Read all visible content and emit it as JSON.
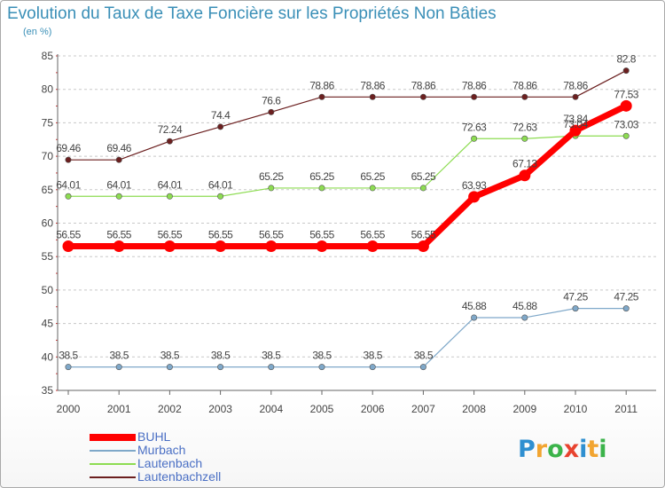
{
  "chart_data": {
    "type": "line",
    "title": "Evolution du Taux de Taxe Foncière sur les Propriétés Non Bâties",
    "ylabel": "(en %)",
    "xlabel": "",
    "ylim": [
      35,
      85
    ],
    "yticks": [
      "35",
      "40",
      "45",
      "50",
      "55",
      "60",
      "65",
      "70",
      "75",
      "80",
      "85"
    ],
    "categories": [
      "2000",
      "2001",
      "2002",
      "2003",
      "2004",
      "2005",
      "2006",
      "2007",
      "2008",
      "2009",
      "2010",
      "2011"
    ],
    "grid": "dashed-horizontal",
    "legend_position": "bottom-left",
    "series": [
      {
        "name": "Lautenbachzell",
        "color": "#6b1f1f",
        "width": 1.2,
        "values": [
          69.46,
          69.46,
          72.24,
          74.4,
          76.6,
          78.86,
          78.86,
          78.86,
          78.86,
          78.86,
          78.86,
          82.8
        ],
        "labels": [
          "69.46",
          "69.46",
          "72.24",
          "74.4",
          "76.6",
          "78.86",
          "78.86",
          "78.86",
          "78.86",
          "78.86",
          "78.86",
          "82.8"
        ]
      },
      {
        "name": "Lautenbach",
        "color": "#8ddc52",
        "width": 1.2,
        "values": [
          64.01,
          64.01,
          64.01,
          64.01,
          65.25,
          65.25,
          65.25,
          65.25,
          72.63,
          72.63,
          73.04,
          73.03
        ],
        "labels": [
          "64.01",
          "64.01",
          "64.01",
          "64.01",
          "65.25",
          "65.25",
          "65.25",
          "65.25",
          "72.63",
          "72.63",
          "73.04",
          "73.03"
        ]
      },
      {
        "name": "BUHL",
        "color": "#ff0000",
        "width": 7,
        "values": [
          56.55,
          56.55,
          56.55,
          56.55,
          56.55,
          56.55,
          56.55,
          56.55,
          63.93,
          67.13,
          73.84,
          77.53
        ],
        "labels": [
          "56.55",
          "56.55",
          "56.55",
          "56.55",
          "56.55",
          "56.55",
          "56.55",
          "56.55",
          "63.93",
          "67.13",
          "73.84",
          "77.53"
        ]
      },
      {
        "name": "Murbach",
        "color": "#7fa8c9",
        "width": 1.2,
        "values": [
          38.5,
          38.5,
          38.5,
          38.5,
          38.5,
          38.5,
          38.5,
          38.5,
          45.88,
          45.88,
          47.25,
          47.25
        ],
        "labels": [
          "38.5",
          "38.5",
          "38.5",
          "38.5",
          "38.5",
          "38.5",
          "38.5",
          "38.5",
          "45.88",
          "45.88",
          "47.25",
          "47.25"
        ]
      }
    ],
    "legend_order": [
      "BUHL",
      "Murbach",
      "Lautenbach",
      "Lautenbachzell"
    ]
  },
  "logo": {
    "letters": [
      "P",
      "r",
      "o",
      "x",
      "i",
      "t",
      "i"
    ],
    "colors": [
      "#2f8fd0",
      "#f2a531",
      "#3bb34a",
      "#e8432f",
      "#2f8fd0",
      "#f2a531",
      "#3bb34a"
    ]
  }
}
